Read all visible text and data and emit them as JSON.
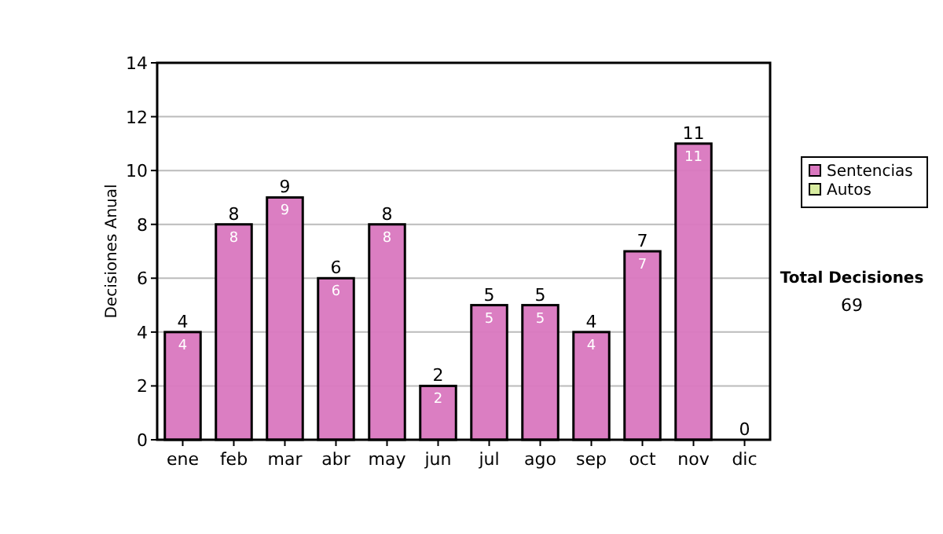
{
  "chart_data": {
    "type": "bar",
    "stacked": true,
    "ylabel": "Decisiones Anual",
    "categories": [
      "ene",
      "feb",
      "mar",
      "abr",
      "may",
      "jun",
      "jul",
      "ago",
      "sep",
      "oct",
      "nov",
      "dic"
    ],
    "series": [
      {
        "name": "Sentencias",
        "color": "#d977bf",
        "values": [
          4,
          8,
          9,
          6,
          8,
          2,
          5,
          5,
          4,
          7,
          11,
          0
        ],
        "value_labels": [
          "4",
          "8",
          "9",
          "6",
          "8",
          "2",
          "5",
          "5",
          "4",
          "7",
          "11",
          null
        ]
      },
      {
        "name": "Autos",
        "color": "#d8eca0",
        "values": [
          0,
          0,
          0,
          0,
          0,
          0,
          0,
          0,
          0,
          0,
          0,
          0
        ]
      }
    ],
    "totals": [
      "4",
      "8",
      "9",
      "6",
      "8",
      "2",
      "5",
      "5",
      "4",
      "7",
      "11",
      "0"
    ],
    "ylim": [
      0,
      14
    ],
    "yticks": [
      0,
      2,
      4,
      6,
      8,
      10,
      12,
      14
    ],
    "grid": "y",
    "legend": "right",
    "annotations": [
      "Total Decisiones",
      "69"
    ]
  }
}
